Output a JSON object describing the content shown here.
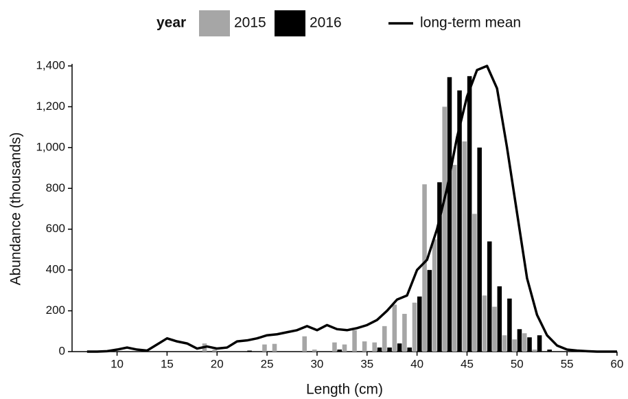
{
  "chart_data": {
    "type": "bar",
    "legend_title": "year",
    "x_label": "Length (cm)",
    "y_label": "Abundance (thousands)",
    "x": [
      7,
      8,
      9,
      10,
      11,
      12,
      13,
      14,
      15,
      16,
      17,
      18,
      19,
      20,
      21,
      22,
      23,
      24,
      25,
      26,
      27,
      28,
      29,
      30,
      31,
      32,
      33,
      34,
      35,
      36,
      37,
      38,
      39,
      40,
      41,
      42,
      43,
      44,
      45,
      46,
      47,
      48,
      49,
      50,
      51,
      52,
      53,
      54,
      55,
      56,
      57,
      58,
      59,
      60
    ],
    "series": [
      {
        "name": "2015",
        "type": "bar",
        "color": "#a6a6a6",
        "values": [
          null,
          null,
          null,
          null,
          null,
          null,
          null,
          null,
          null,
          null,
          null,
          null,
          40,
          10,
          null,
          null,
          null,
          null,
          35,
          38,
          null,
          null,
          75,
          10,
          null,
          45,
          35,
          105,
          50,
          45,
          125,
          230,
          185,
          240,
          820,
          550,
          1200,
          915,
          1030,
          675,
          275,
          220,
          80,
          60,
          90,
          10,
          null,
          null,
          null,
          null,
          null,
          null,
          null,
          null
        ]
      },
      {
        "name": "2016",
        "type": "bar",
        "color": "#000000",
        "values": [
          null,
          null,
          null,
          null,
          null,
          null,
          null,
          null,
          null,
          null,
          null,
          null,
          null,
          null,
          null,
          null,
          5,
          null,
          null,
          null,
          null,
          null,
          null,
          null,
          null,
          10,
          null,
          null,
          null,
          20,
          20,
          40,
          20,
          270,
          400,
          830,
          1345,
          1280,
          1350,
          1000,
          540,
          320,
          260,
          110,
          70,
          80,
          10,
          null,
          null,
          null,
          null,
          null,
          null,
          null
        ]
      },
      {
        "name": "long-term mean",
        "type": "line",
        "color": "#000000",
        "values": [
          0,
          0,
          2,
          10,
          20,
          10,
          5,
          35,
          65,
          50,
          40,
          15,
          25,
          15,
          20,
          50,
          55,
          65,
          80,
          85,
          95,
          105,
          125,
          105,
          130,
          110,
          105,
          115,
          130,
          155,
          200,
          255,
          275,
          400,
          450,
          600,
          800,
          1050,
          1250,
          1380,
          1400,
          1290,
          1000,
          680,
          360,
          180,
          80,
          30,
          10,
          5,
          2,
          0,
          0,
          0
        ]
      }
    ],
    "xlim": [
      5.5,
      60
    ],
    "ylim": [
      0,
      1400
    ],
    "xticks": [
      10,
      15,
      20,
      25,
      30,
      35,
      40,
      45,
      50,
      55,
      60
    ],
    "yticks": [
      0,
      200,
      400,
      600,
      800,
      {
        "value": 1000,
        "label": "1,000"
      },
      {
        "value": 1200,
        "label": "1,200"
      },
      {
        "value": 1400,
        "label": "1,400"
      }
    ]
  }
}
